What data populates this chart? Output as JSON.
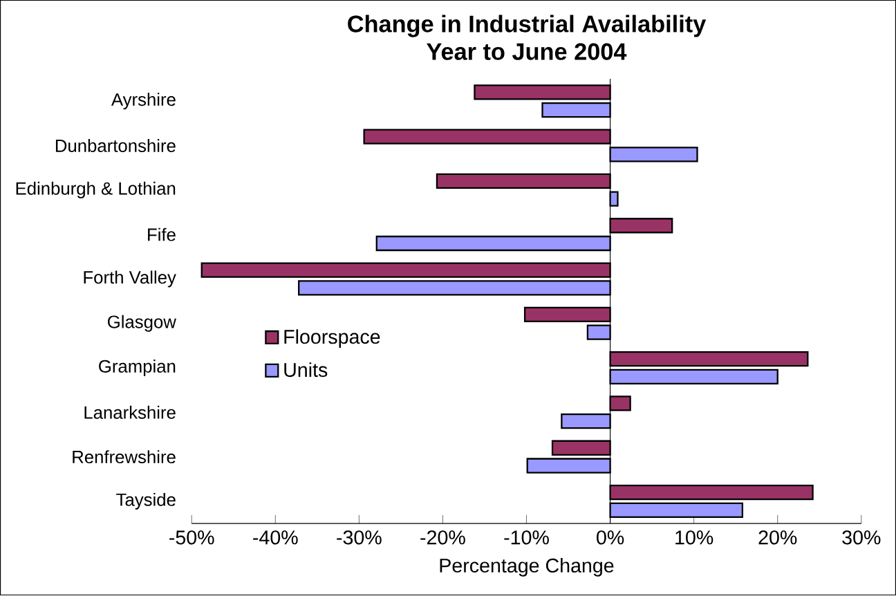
{
  "chart_data": {
    "type": "bar",
    "orientation": "horizontal",
    "title": "Change in Industrial Availability",
    "subtitle": "Year to June 2004",
    "xlabel": "Percentage Change",
    "categories": [
      "Ayrshire",
      "Dunbartonshire",
      "Edinburgh & Lothian",
      "Fife",
      "Forth Valley",
      "Glasgow",
      "Grampian",
      "Lanarkshire",
      "Renfrewshire",
      "Tayside"
    ],
    "series": [
      {
        "name": "Floorspace",
        "color": "#993366",
        "values": [
          -16.2,
          -29.4,
          -20.7,
          7.4,
          -48.8,
          -10.2,
          23.6,
          2.4,
          -6.9,
          24.2
        ]
      },
      {
        "name": "Units",
        "color": "#9999ff",
        "values": [
          -8.1,
          10.4,
          0.9,
          -27.9,
          -37.2,
          -2.7,
          20.0,
          -5.8,
          -9.9,
          15.8
        ]
      }
    ],
    "xlim": [
      -50,
      30
    ],
    "xticks": [
      {
        "value": -50,
        "label": "-50%"
      },
      {
        "value": -40,
        "label": "-40%"
      },
      {
        "value": -30,
        "label": "-30%"
      },
      {
        "value": -20,
        "label": "-20%"
      },
      {
        "value": -10,
        "label": "-10%"
      },
      {
        "value": 0,
        "label": "0%"
      },
      {
        "value": 10,
        "label": "10%"
      },
      {
        "value": 20,
        "label": "20%"
      },
      {
        "value": 30,
        "label": "30%"
      }
    ],
    "legend": "left"
  }
}
